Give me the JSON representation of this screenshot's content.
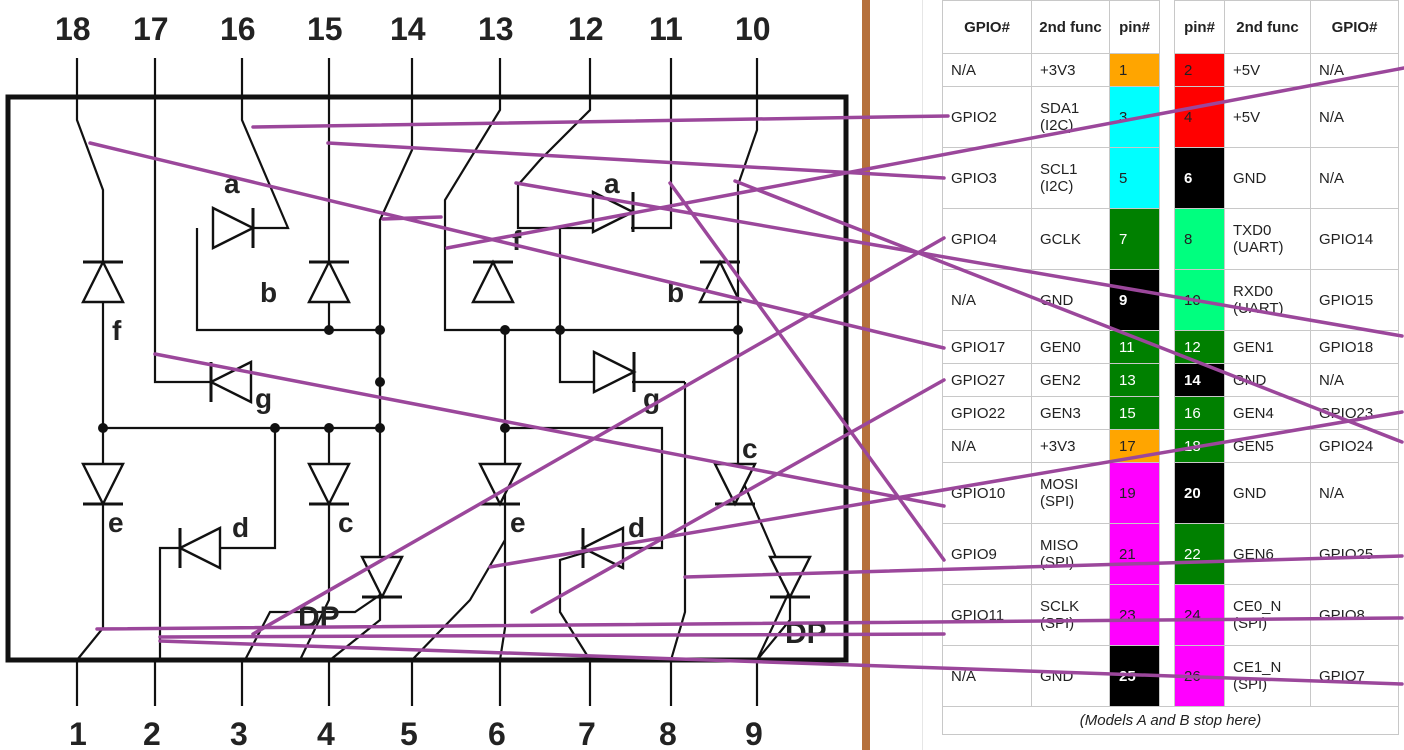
{
  "diagram": {
    "top_pins": [
      "18",
      "17",
      "16",
      "15",
      "14",
      "13",
      "12",
      "11",
      "10"
    ],
    "bottom_pins": [
      "1",
      "2",
      "3",
      "4",
      "5",
      "6",
      "7",
      "8",
      "9"
    ],
    "segment_labels": {
      "a1": "a",
      "b1": "b",
      "f1": "f",
      "g1": "g",
      "e1": "e",
      "c1": "c",
      "d1": "d",
      "dp1": "DP",
      "a2": "a",
      "b2": "b",
      "f2": "f",
      "g2": "g",
      "e2": "e",
      "c2": "c",
      "d2": "d",
      "dp2": "DP"
    }
  },
  "table": {
    "headers": [
      "GPIO#",
      "2nd func",
      "pin#",
      "",
      "pin#",
      "2nd func",
      "GPIO#"
    ],
    "rows": [
      {
        "lg": "N/A",
        "lf": "+3V3",
        "lp": "1",
        "lc": "#ffa500",
        "rp": "2",
        "rc": "#ff0000",
        "rf": "+5V",
        "rg": "N/A"
      },
      {
        "lg": "GPIO2",
        "lf": "SDA1 (I2C)",
        "lp": "3",
        "lc": "#00ffff",
        "rp": "4",
        "rc": "#ff0000",
        "rf": "+5V",
        "rg": "N/A"
      },
      {
        "lg": "GPIO3",
        "lf": "SCL1 (I2C)",
        "lp": "5",
        "lc": "#00ffff",
        "rp": "6",
        "rc": "#000000",
        "rf": "GND",
        "rg": "N/A"
      },
      {
        "lg": "GPIO4",
        "lf": "GCLK",
        "lp": "7",
        "lc": "#008000",
        "rp": "8",
        "rc": "#00ff7f",
        "rf": "TXD0 (UART)",
        "rg": "GPIO14"
      },
      {
        "lg": "N/A",
        "lf": "GND",
        "lp": "9",
        "lc": "#000000",
        "rp": "10",
        "rc": "#00ff7f",
        "rf": "RXD0 (UART)",
        "rg": "GPIO15"
      },
      {
        "lg": "GPIO17",
        "lf": "GEN0",
        "lp": "11",
        "lc": "#008000",
        "rp": "12",
        "rc": "#008000",
        "rf": "GEN1",
        "rg": "GPIO18"
      },
      {
        "lg": "GPIO27",
        "lf": "GEN2",
        "lp": "13",
        "lc": "#008000",
        "rp": "14",
        "rc": "#000000",
        "rf": "GND",
        "rg": "N/A"
      },
      {
        "lg": "GPIO22",
        "lf": "GEN3",
        "lp": "15",
        "lc": "#008000",
        "rp": "16",
        "rc": "#008000",
        "rf": "GEN4",
        "rg": "GPIO23"
      },
      {
        "lg": "N/A",
        "lf": "+3V3",
        "lp": "17",
        "lc": "#ffa500",
        "rp": "18",
        "rc": "#008000",
        "rf": "GEN5",
        "rg": "GPIO24"
      },
      {
        "lg": "GPIO10",
        "lf": "MOSI (SPI)",
        "lp": "19",
        "lc": "#ff00ff",
        "rp": "20",
        "rc": "#000000",
        "rf": "GND",
        "rg": "N/A"
      },
      {
        "lg": "GPIO9",
        "lf": "MISO (SPI)",
        "lp": "21",
        "lc": "#ff00ff",
        "rp": "22",
        "rc": "#008000",
        "rf": "GEN6",
        "rg": "GPIO25"
      },
      {
        "lg": "GPIO11",
        "lf": "SCLK (SPI)",
        "lp": "23",
        "lc": "#ff00ff",
        "rp": "24",
        "rc": "#ff00ff",
        "rf": "CE0_N (SPI)",
        "rg": "GPIO8"
      },
      {
        "lg": "N/A",
        "lf": "GND",
        "lp": "25",
        "lc": "#000000",
        "rp": "26",
        "rc": "#ff00ff",
        "rf": "CE1_N (SPI)",
        "rg": "GPIO7"
      }
    ],
    "note": "(Models A and B stop here)"
  },
  "colors": {
    "wire": "#9b479b",
    "divider": "#b5703c"
  }
}
